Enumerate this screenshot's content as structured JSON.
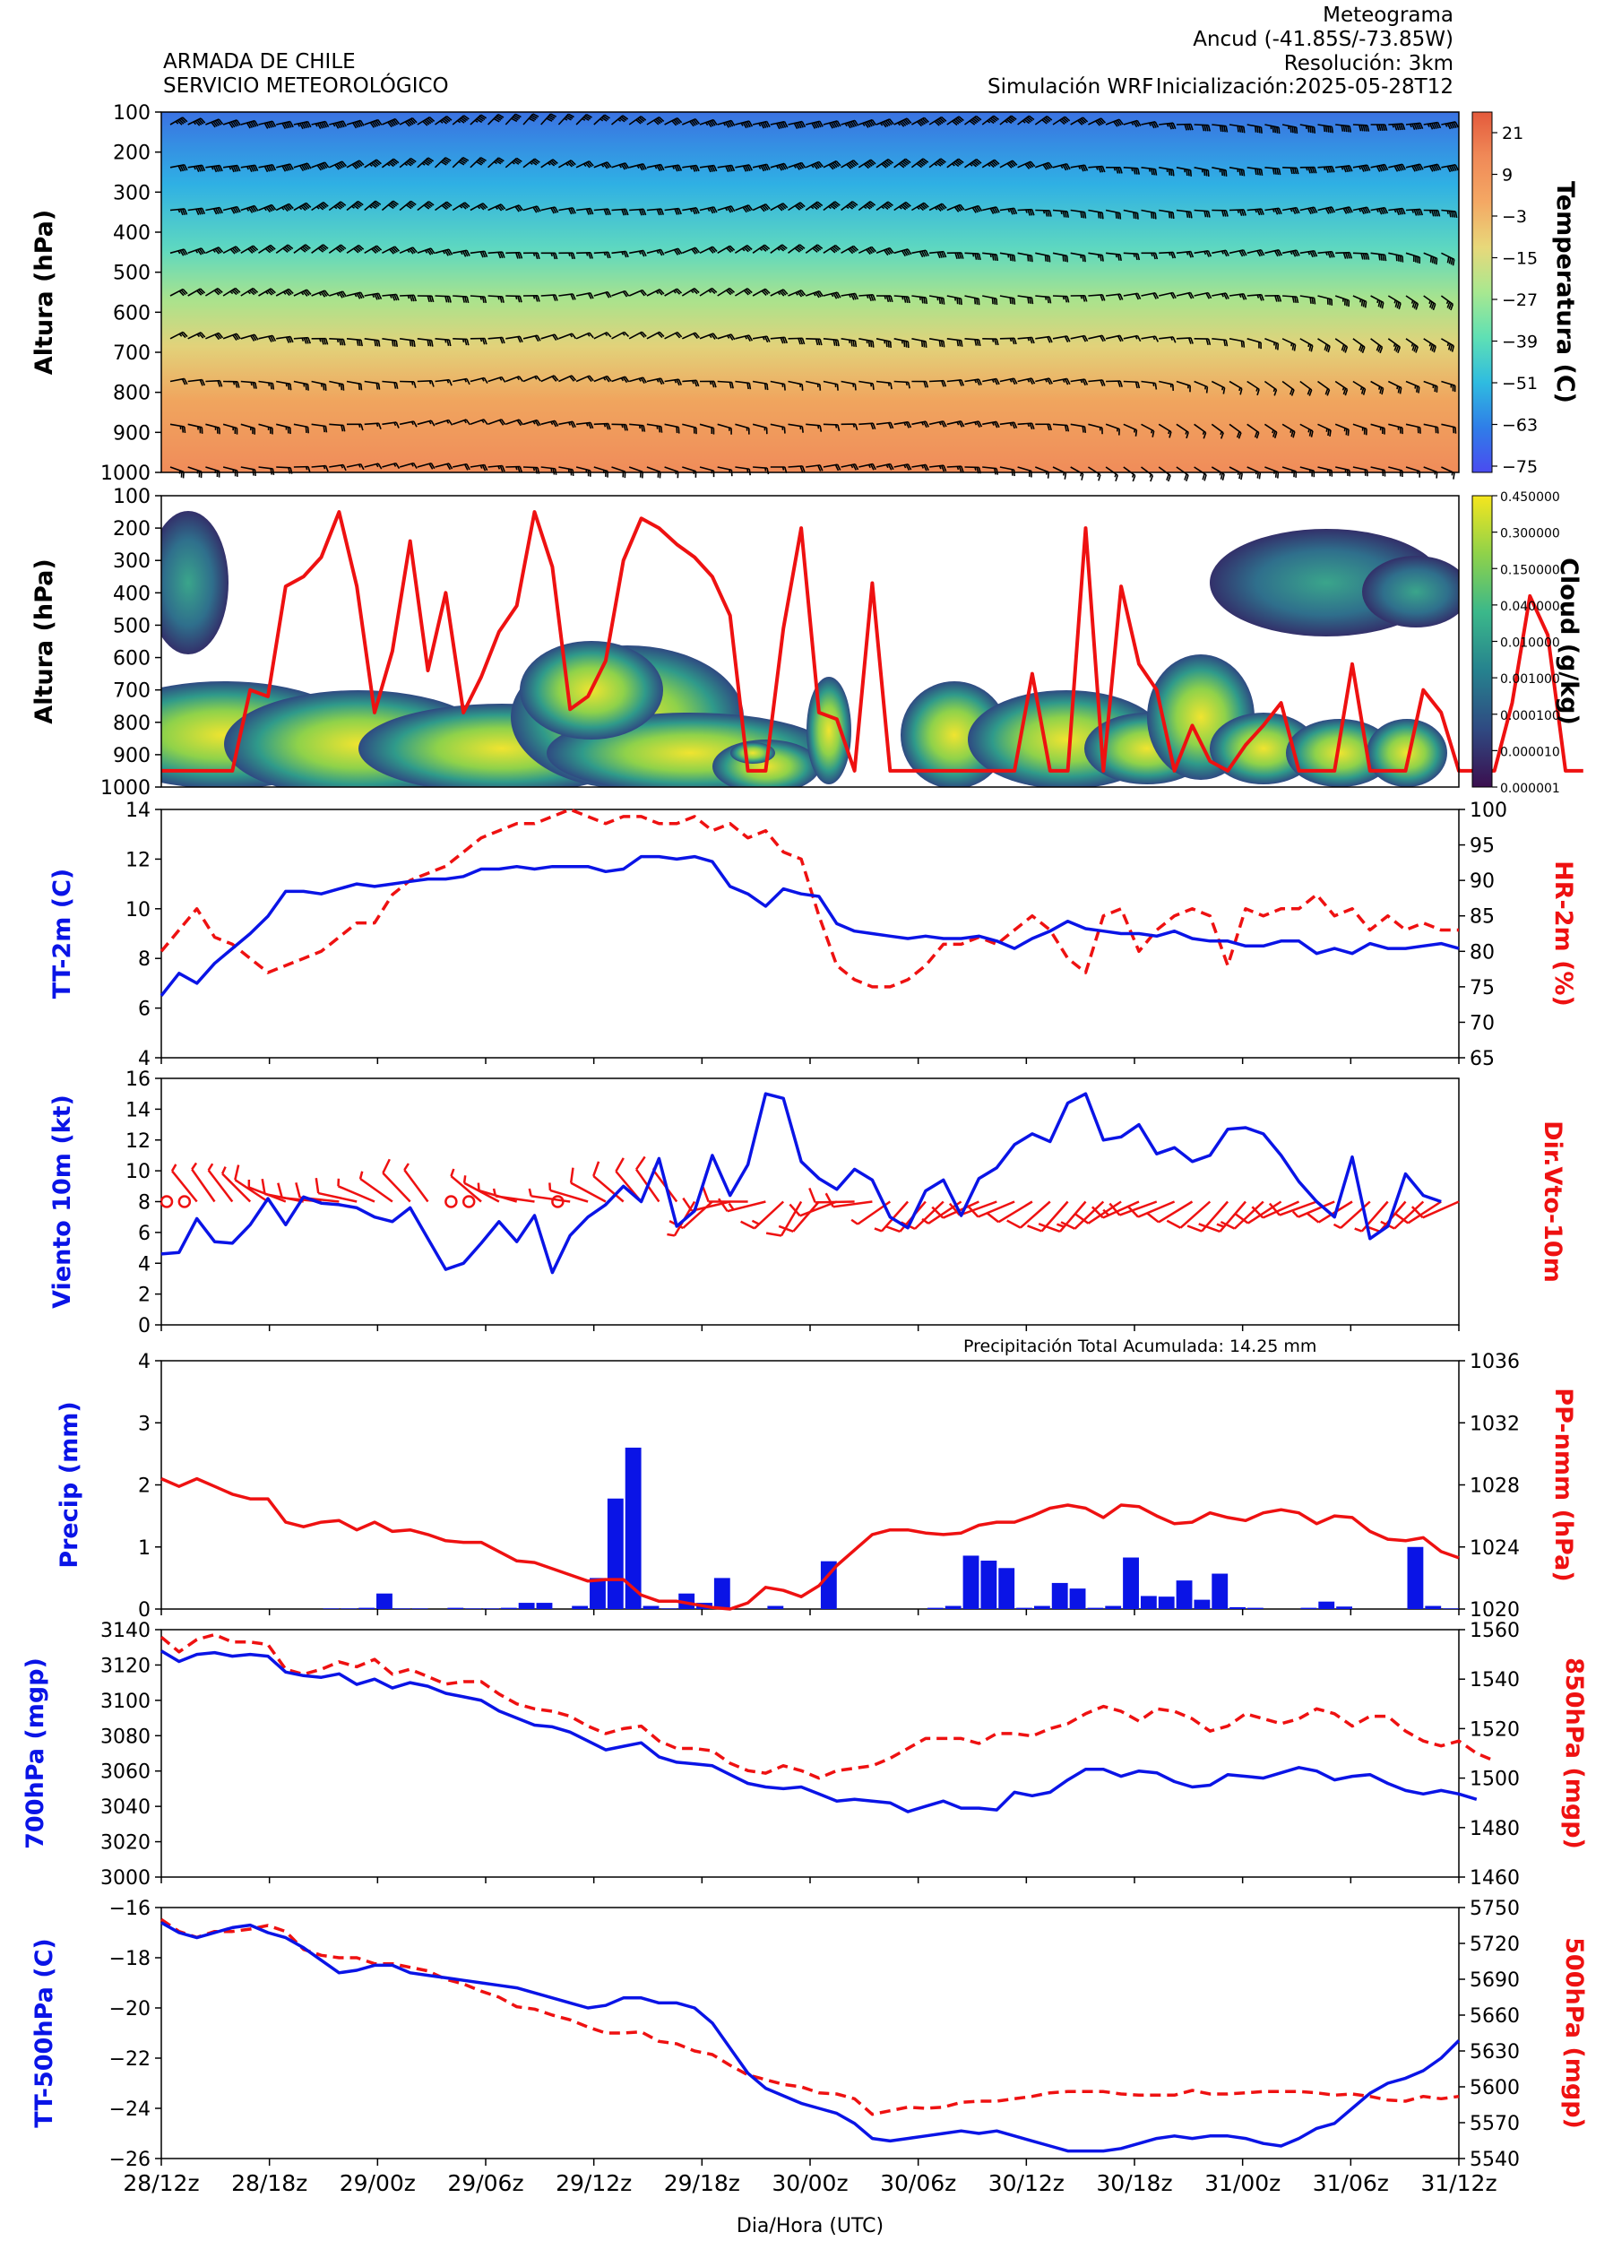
{
  "header": {
    "org_line1": "ARMADA DE CHILE",
    "org_line2": "SERVICIO METEOROLÓGICO",
    "title": "Meteograma",
    "location": "Ancud  (-41.85S/-73.85W)",
    "resolution": "Resolución: 3km",
    "simulation": "Simulación WRF",
    "init": "Inicialización:2025-05-28T12"
  },
  "colors": {
    "blue": "#0a14e6",
    "red": "#ee1111",
    "barb": "#000000",
    "temp_cmap": [
      "#4a4cf0",
      "#2f7ee8",
      "#2fbce0",
      "#5fe0b4",
      "#a8e890",
      "#e8d87a",
      "#f4a864",
      "#f08a58",
      "#e45a3c"
    ],
    "cloud_cmap": [
      "#3b0f4f",
      "#2f4a82",
      "#26828e",
      "#3bb88a",
      "#8fd24a",
      "#f5e61e"
    ]
  },
  "chart_data": [
    {
      "id": "upper_air",
      "type": "heatmap",
      "ylabel": "Altura (hPa)",
      "yticks": [
        100,
        200,
        300,
        400,
        500,
        600,
        700,
        800,
        900,
        1000
      ],
      "colorbar_label": "Temperatura (C)",
      "colorbar_ticks": [
        "21",
        "9",
        "−3",
        "−15",
        "−27",
        "−39",
        "−51",
        "−63",
        "−75"
      ],
      "wind_barbs": true
    },
    {
      "id": "cloud",
      "type": "heatmap",
      "ylabel": "Altura (hPa)",
      "yticks": [
        100,
        200,
        300,
        400,
        500,
        600,
        700,
        800,
        900,
        1000
      ],
      "colorbar_label": "Cloud (g/kg)",
      "colorbar_ticks": [
        "0.450000",
        "0.300000",
        "0.150000",
        "0.040000",
        "0.010000",
        "0.001000",
        "0.000100",
        "0.000010",
        "0.000001"
      ],
      "overlay_line_hpa": [
        950,
        950,
        950,
        950,
        950,
        700,
        720,
        380,
        350,
        290,
        150,
        380,
        770,
        580,
        240,
        640,
        400,
        770,
        660,
        520,
        440,
        150,
        320,
        760,
        720,
        610,
        300,
        170,
        200,
        250,
        290,
        350,
        470,
        950,
        950,
        510,
        200,
        770,
        790,
        950,
        370,
        950,
        950,
        950,
        950,
        950,
        950,
        950,
        950,
        650,
        950,
        950,
        200,
        950,
        380,
        620,
        700,
        950,
        810,
        920,
        950,
        870,
        810,
        740,
        950,
        950,
        950,
        620,
        950,
        950,
        950,
        700,
        770,
        950,
        950,
        950,
        740,
        410,
        530,
        950,
        950
      ]
    },
    {
      "id": "temp_rh",
      "type": "line",
      "ylabel": "TT-2m (C)",
      "y2label": "HR-2m (%)",
      "ylim": [
        4,
        14
      ],
      "yticks": [
        4,
        6,
        8,
        10,
        12,
        14
      ],
      "y2lim": [
        65,
        100
      ],
      "y2ticks": [
        65,
        70,
        75,
        80,
        85,
        90,
        95,
        100
      ],
      "series": [
        {
          "values": [
            6.5,
            7.4,
            7.0,
            7.8,
            8.4,
            9.0,
            9.7,
            10.7,
            10.7,
            10.6,
            10.8,
            11.0,
            10.9,
            11.0,
            11.1,
            11.2,
            11.2,
            11.3,
            11.6,
            11.6,
            11.7,
            11.6,
            11.7,
            11.7,
            11.7,
            11.5,
            11.6,
            12.1,
            12.1,
            12.0,
            12.1,
            11.9,
            10.9,
            10.6,
            10.1,
            10.8,
            10.6,
            10.5,
            9.4,
            9.1,
            9.0,
            8.9,
            8.8,
            8.9,
            8.8,
            8.8,
            8.9,
            8.7,
            8.4,
            8.8,
            9.1,
            9.5,
            9.2,
            9.1,
            9.0,
            9.0,
            8.9,
            9.1,
            8.8,
            8.7,
            8.7,
            8.5,
            8.5,
            8.7,
            8.7,
            8.2,
            8.4,
            8.2,
            8.6,
            8.4,
            8.4,
            8.5,
            8.6,
            8.4
          ]
        },
        {
          "values": [
            80,
            83,
            86,
            82,
            81,
            79,
            77,
            78,
            79,
            80,
            82,
            84,
            84,
            88,
            90,
            91,
            92,
            94,
            96,
            97,
            98,
            98,
            99,
            100,
            99,
            98,
            99,
            99,
            98,
            98,
            99,
            97,
            98,
            96,
            97,
            94,
            93,
            85,
            78,
            76,
            75,
            75,
            76,
            78,
            81,
            81,
            82,
            81,
            83,
            85,
            83,
            79,
            77,
            85,
            86,
            80,
            83,
            85,
            86,
            85,
            78,
            86,
            85,
            86,
            86,
            88,
            85,
            86,
            83,
            85,
            83,
            84,
            83,
            83
          ]
        }
      ]
    },
    {
      "id": "wind10",
      "type": "line",
      "ylabel": "Viento 10m (kt)",
      "y2label": "Dir.Vto-10m",
      "ylim": [
        0,
        16
      ],
      "yticks": [
        0,
        2,
        4,
        6,
        8,
        10,
        12,
        14,
        16
      ],
      "series": [
        {
          "values": [
            4.6,
            4.7,
            6.9,
            5.4,
            5.3,
            6.5,
            8.2,
            6.5,
            8.3,
            7.9,
            7.8,
            7.6,
            7.0,
            6.7,
            7.6,
            5.6,
            3.6,
            4.0,
            5.3,
            6.7,
            5.4,
            7.1,
            3.4,
            5.8,
            7.0,
            7.8,
            9.0,
            8.0,
            10.8,
            6.4,
            7.4,
            11.0,
            8.4,
            10.4,
            15.0,
            14.7,
            10.6,
            9.5,
            8.8,
            10.1,
            9.4,
            7.0,
            6.3,
            8.7,
            9.4,
            7.1,
            9.5,
            10.2,
            11.7,
            12.4,
            11.9,
            14.4,
            15.0,
            12.0,
            12.2,
            13.0,
            11.1,
            11.5,
            10.6,
            11.0,
            12.7,
            12.8,
            12.4,
            11.0,
            9.3,
            8.0,
            7.0,
            10.9,
            5.6,
            6.4,
            9.8,
            8.4,
            8.0
          ]
        }
      ]
    },
    {
      "id": "precip_slp",
      "type": "bar",
      "ylabel": "Precip (mm)",
      "y2label": "PP-nmm (hPa)",
      "annotation": "Precipitación Total Acumulada: 14.25 mm",
      "ylim": [
        0,
        4
      ],
      "yticks": [
        0,
        1,
        2,
        3,
        4
      ],
      "y2lim": [
        1020,
        1036
      ],
      "y2ticks": [
        1020,
        1024,
        1028,
        1032,
        1036
      ],
      "precip": [
        0,
        0,
        0,
        0,
        0,
        0,
        0,
        0,
        0,
        0.01,
        0.01,
        0.02,
        0.25,
        0.01,
        0.01,
        0,
        0.02,
        0.01,
        0.01,
        0.02,
        0.1,
        0.1,
        0,
        0.05,
        0.5,
        1.78,
        2.6,
        0.05,
        0.01,
        0.25,
        0.1,
        0.5,
        0,
        0,
        0.05,
        0,
        0,
        0.77,
        0,
        0,
        0,
        0,
        0,
        0.02,
        0.05,
        0.86,
        0.78,
        0.66,
        0.02,
        0.05,
        0.42,
        0.33,
        0.02,
        0.05,
        0.83,
        0.21,
        0.2,
        0.46,
        0.15,
        0.57,
        0.03,
        0.02,
        0,
        0,
        0.02,
        0.12,
        0.04,
        0,
        0,
        0,
        1.0,
        0.05,
        0.01
      ],
      "slp": [
        1028.4,
        1027.9,
        1028.4,
        1027.9,
        1027.4,
        1027.1,
        1027.1,
        1025.6,
        1025.3,
        1025.6,
        1025.7,
        1025.1,
        1025.6,
        1025.0,
        1025.1,
        1024.8,
        1024.4,
        1024.3,
        1024.3,
        1023.7,
        1023.1,
        1023.0,
        1022.6,
        1022.2,
        1021.8,
        1021.9,
        1021.9,
        1020.9,
        1020.5,
        1020.5,
        1020.3,
        1020.1,
        1020.0,
        1020.4,
        1021.4,
        1021.2,
        1020.8,
        1021.5,
        1022.8,
        1023.8,
        1024.8,
        1025.1,
        1025.1,
        1024.9,
        1024.8,
        1024.9,
        1025.4,
        1025.6,
        1025.6,
        1026.0,
        1026.5,
        1026.7,
        1026.5,
        1025.9,
        1026.7,
        1026.6,
        1026.0,
        1025.5,
        1025.6,
        1026.2,
        1025.9,
        1025.7,
        1026.2,
        1026.4,
        1026.2,
        1025.5,
        1026.0,
        1025.9,
        1025.0,
        1024.5,
        1024.4,
        1024.6,
        1023.7,
        1023.3
      ]
    },
    {
      "id": "gph",
      "type": "line",
      "ylabel": "700hPa (mgp)",
      "y2label": "850hPa (mgp)",
      "ylim": [
        3000,
        3140
      ],
      "yticks": [
        3000,
        3020,
        3040,
        3060,
        3080,
        3100,
        3120,
        3140
      ],
      "y2lim": [
        1460,
        1560
      ],
      "y2ticks": [
        1460,
        1480,
        1500,
        1520,
        1540,
        1560
      ],
      "series": [
        {
          "values": [
            3128,
            3122,
            3126,
            3127,
            3125,
            3126,
            3125,
            3116,
            3114,
            3113,
            3115,
            3109,
            3112,
            3107,
            3110,
            3108,
            3104,
            3102,
            3100,
            3094,
            3090,
            3086,
            3085,
            3082,
            3077,
            3072,
            3074,
            3076,
            3068,
            3065,
            3064,
            3063,
            3058,
            3053,
            3051,
            3050,
            3051,
            3047,
            3043,
            3044,
            3043,
            3042,
            3037,
            3040,
            3043,
            3039,
            3039,
            3038,
            3048,
            3046,
            3048,
            3055,
            3061,
            3061,
            3057,
            3060,
            3059,
            3054,
            3051,
            3052,
            3058,
            3057,
            3056,
            3059,
            3062,
            3060,
            3055,
            3057,
            3058,
            3053,
            3049,
            3047,
            3049,
            3047,
            3044
          ]
        },
        {
          "values": [
            1557,
            1551,
            1556,
            1558,
            1555,
            1555,
            1554,
            1544,
            1542,
            1544,
            1547,
            1545,
            1548,
            1542,
            1544,
            1541,
            1538,
            1539,
            1539,
            1534,
            1530,
            1528,
            1527,
            1525,
            1521,
            1518,
            1520,
            1521,
            1515,
            1512,
            1512,
            1511,
            1506,
            1503,
            1502,
            1505,
            1503,
            1500,
            1503,
            1504,
            1505,
            1508,
            1512,
            1516,
            1516,
            1516,
            1514,
            1518,
            1518,
            1517,
            1520,
            1522,
            1526,
            1529,
            1527,
            1523,
            1528,
            1527,
            1524,
            1519,
            1521,
            1526,
            1524,
            1522,
            1524,
            1528,
            1526,
            1521,
            1525,
            1525,
            1519,
            1515,
            1513,
            1515,
            1510,
            1507
          ]
        }
      ]
    },
    {
      "id": "t500",
      "type": "line",
      "ylabel": "TT-500hPa (C)",
      "y2label": "500hPa (mgp)",
      "xlabel": "Dia/Hora (UTC)",
      "ylim": [
        -26,
        -16
      ],
      "yticks": [
        "−26",
        "−24",
        "−22",
        "−20",
        "−18",
        "−16"
      ],
      "y2lim": [
        5540,
        5750
      ],
      "y2ticks": [
        5540,
        5570,
        5600,
        5630,
        5660,
        5690,
        5720,
        5750
      ],
      "xticks": [
        "28/12z",
        "28/18z",
        "29/00z",
        "29/06z",
        "29/12z",
        "29/18z",
        "30/00z",
        "30/06z",
        "30/12z",
        "30/18z",
        "31/00z",
        "31/06z",
        "31/12z"
      ],
      "series": [
        {
          "values": [
            -16.6,
            -17.0,
            -17.2,
            -17.0,
            -16.8,
            -16.7,
            -17.0,
            -17.2,
            -17.6,
            -18.1,
            -18.6,
            -18.5,
            -18.3,
            -18.3,
            -18.6,
            -18.7,
            -18.8,
            -18.9,
            -19.0,
            -19.1,
            -19.2,
            -19.4,
            -19.6,
            -19.8,
            -20.0,
            -19.9,
            -19.6,
            -19.6,
            -19.8,
            -19.8,
            -20.0,
            -20.6,
            -21.6,
            -22.6,
            -23.2,
            -23.5,
            -23.8,
            -24.0,
            -24.2,
            -24.6,
            -25.2,
            -25.3,
            -25.2,
            -25.1,
            -25.0,
            -24.9,
            -25.0,
            -24.9,
            -25.1,
            -25.3,
            -25.5,
            -25.7,
            -25.7,
            -25.7,
            -25.6,
            -25.4,
            -25.2,
            -25.1,
            -25.2,
            -25.1,
            -25.1,
            -25.2,
            -25.4,
            -25.5,
            -25.2,
            -24.8,
            -24.6,
            -24.0,
            -23.4,
            -23.0,
            -22.8,
            -22.5,
            -22.0,
            -21.3
          ]
        },
        {
          "values": [
            5740,
            5730,
            5725,
            5730,
            5730,
            5732,
            5735,
            5730,
            5715,
            5710,
            5708,
            5708,
            5703,
            5703,
            5700,
            5697,
            5690,
            5686,
            5680,
            5675,
            5667,
            5665,
            5660,
            5656,
            5650,
            5645,
            5645,
            5646,
            5638,
            5636,
            5630,
            5627,
            5618,
            5610,
            5606,
            5602,
            5600,
            5595,
            5594,
            5590,
            5577,
            5580,
            5583,
            5582,
            5583,
            5587,
            5588,
            5588,
            5590,
            5592,
            5595,
            5596,
            5596,
            5596,
            5594,
            5593,
            5593,
            5593,
            5597,
            5594,
            5594,
            5595,
            5596,
            5596,
            5596,
            5595,
            5593,
            5594,
            5592,
            5589,
            5588,
            5592,
            5590,
            5592
          ]
        }
      ]
    }
  ]
}
